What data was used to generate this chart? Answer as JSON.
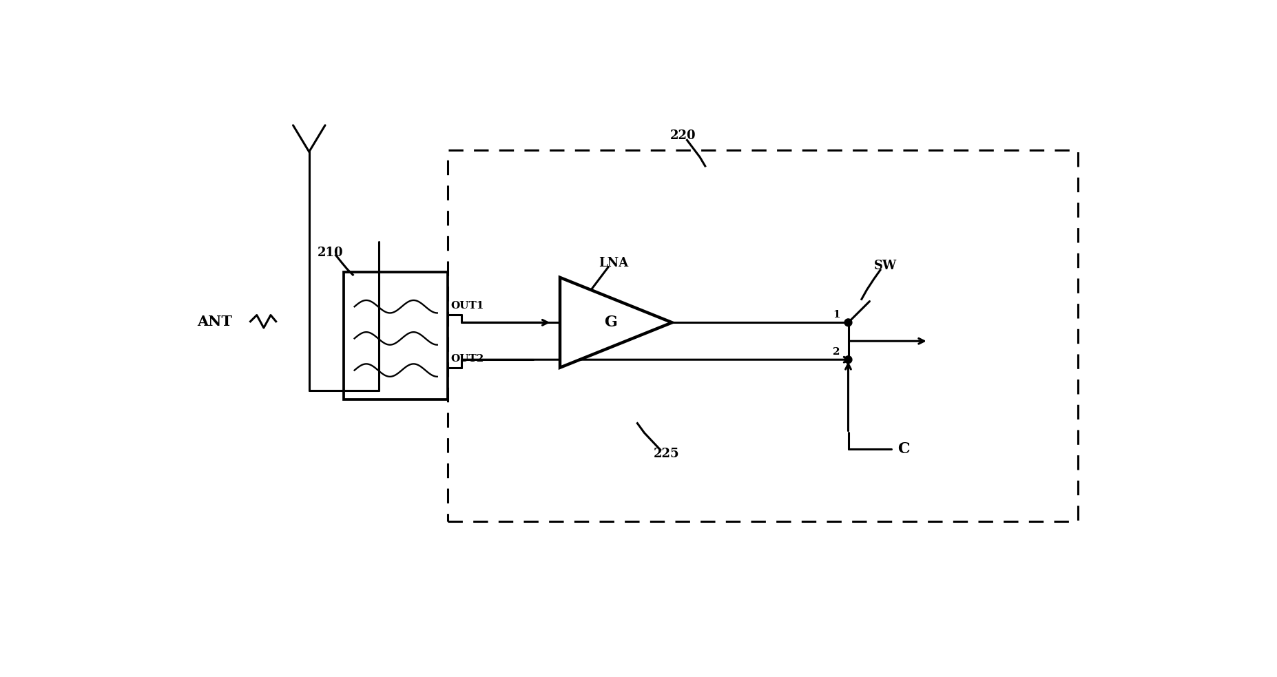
{
  "bg_color": "#ffffff",
  "lc": "#000000",
  "lw": 2.2,
  "fig_w": 18.54,
  "fig_h": 9.83,
  "dpi": 100,
  "xlim": [
    0,
    18.54
  ],
  "ylim": [
    0,
    9.83
  ]
}
